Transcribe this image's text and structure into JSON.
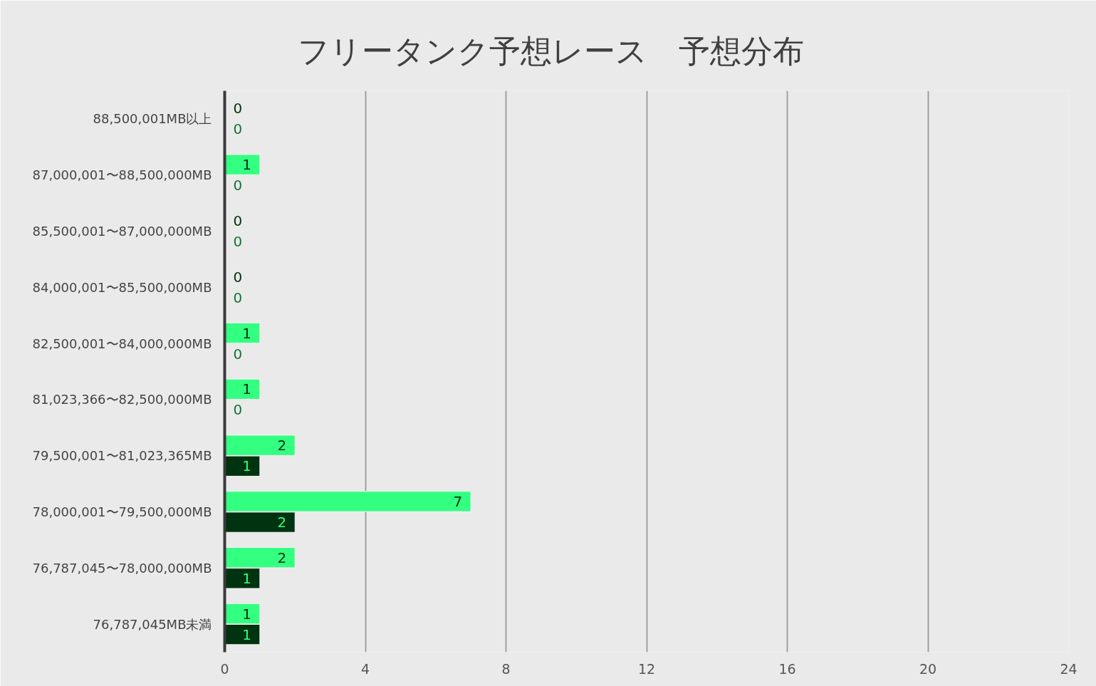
{
  "chart_data": {
    "type": "bar",
    "orientation": "horizontal",
    "title": "フリータンク予想レース　予想分布",
    "categories": [
      "88,500,001MB以上",
      "87,000,001〜88,500,000MB",
      "85,500,001〜87,000,000MB",
      "84,000,001〜85,500,000MB",
      "82,500,001〜84,000,000MB",
      "81,023,366〜82,500,000MB",
      "79,500,001〜81,023,365MB",
      "78,000,001〜79,500,000MB",
      "76,787,045〜78,000,000MB",
      "76,787,045MB未満"
    ],
    "series": [
      {
        "color": "#33ff80",
        "values": [
          0,
          1,
          0,
          0,
          1,
          1,
          2,
          7,
          2,
          1
        ]
      },
      {
        "color": "#00330f",
        "values": [
          0,
          0,
          0,
          0,
          0,
          0,
          1,
          2,
          1,
          1
        ]
      }
    ],
    "xlim": [
      0,
      24
    ],
    "xticks": [
      0,
      4,
      8,
      12,
      16,
      20,
      24
    ],
    "grid": "x",
    "data_labels": true
  }
}
